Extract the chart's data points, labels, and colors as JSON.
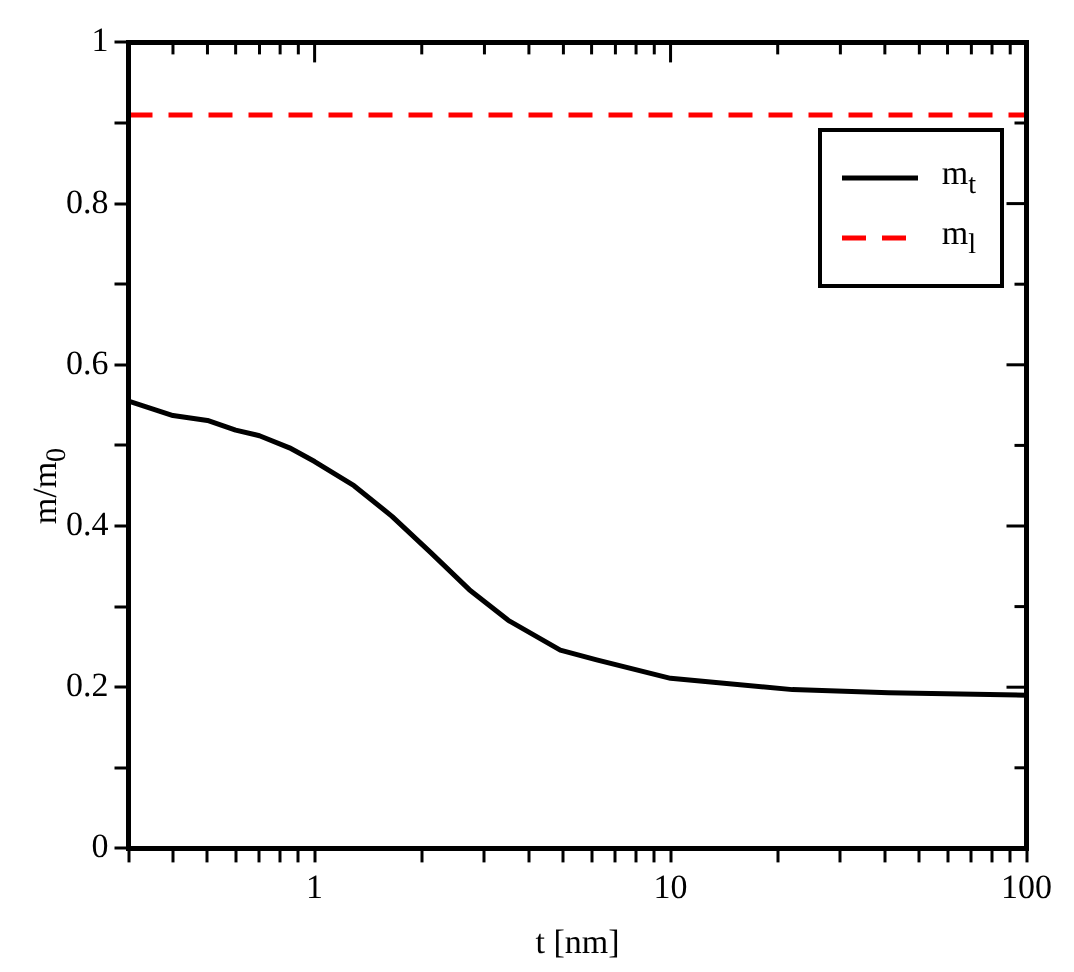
{
  "chart_data": {
    "type": "line",
    "xlabel": "t [nm]",
    "ylabel": "m/m$_{0}$",
    "log": "x",
    "xlim": [
      0.3,
      100
    ],
    "ylim": [
      0,
      1
    ],
    "xticks": [
      {
        "value": 0.3,
        "label": null
      },
      {
        "value": 0.4,
        "label": null
      },
      {
        "value": 0.5,
        "label": null
      },
      {
        "value": 0.6,
        "label": null
      },
      {
        "value": 0.7,
        "label": null
      },
      {
        "value": 0.8,
        "label": null
      },
      {
        "value": 0.9,
        "label": null
      },
      1,
      {
        "value": 2,
        "label": null
      },
      {
        "value": 3,
        "label": null
      },
      {
        "value": 4,
        "label": null
      },
      {
        "value": 5,
        "label": null
      },
      {
        "value": 6,
        "label": null
      },
      {
        "value": 7,
        "label": null
      },
      {
        "value": 8,
        "label": null
      },
      {
        "value": 9,
        "label": null
      },
      10,
      {
        "value": 20,
        "label": null
      },
      {
        "value": 30,
        "label": null
      },
      {
        "value": 40,
        "label": null
      },
      {
        "value": 50,
        "label": null
      },
      {
        "value": 60,
        "label": null
      },
      {
        "value": 70,
        "label": null
      },
      {
        "value": 80,
        "label": null
      },
      {
        "value": 90,
        "label": null
      },
      100
    ],
    "yticks": [
      0,
      {
        "value": 0.1,
        "label": null
      },
      0.2,
      {
        "value": 0.3,
        "label": null
      },
      0.4,
      {
        "value": 0.5,
        "label": null
      },
      0.6,
      {
        "value": 0.7,
        "label": null
      },
      0.8,
      {
        "value": 0.9,
        "label": null
      },
      1
    ],
    "grid": false,
    "legend": "top right",
    "series": [
      {
        "name": "m$_{t}$",
        "color": "#000000",
        "line_style": "solid",
        "x": [
          0.3,
          0.4,
          0.5,
          0.6,
          0.7,
          0.85,
          1,
          1.29,
          1.65,
          2.12,
          2.72,
          3.5,
          4.9,
          6.2,
          10,
          22,
          41,
          100
        ],
        "values": [
          0.555,
          0.537,
          0.531,
          0.519,
          0.512,
          0.497,
          0.48,
          0.45,
          0.412,
          0.367,
          0.321,
          0.283,
          0.246,
          0.234,
          0.211,
          0.197,
          0.193,
          0.19
        ]
      },
      {
        "name": "m$_{l}$",
        "color": "#ff0000",
        "line_style": "dashed",
        "x": [
          0.3,
          100
        ],
        "values": [
          0.91,
          0.91
        ]
      }
    ]
  }
}
